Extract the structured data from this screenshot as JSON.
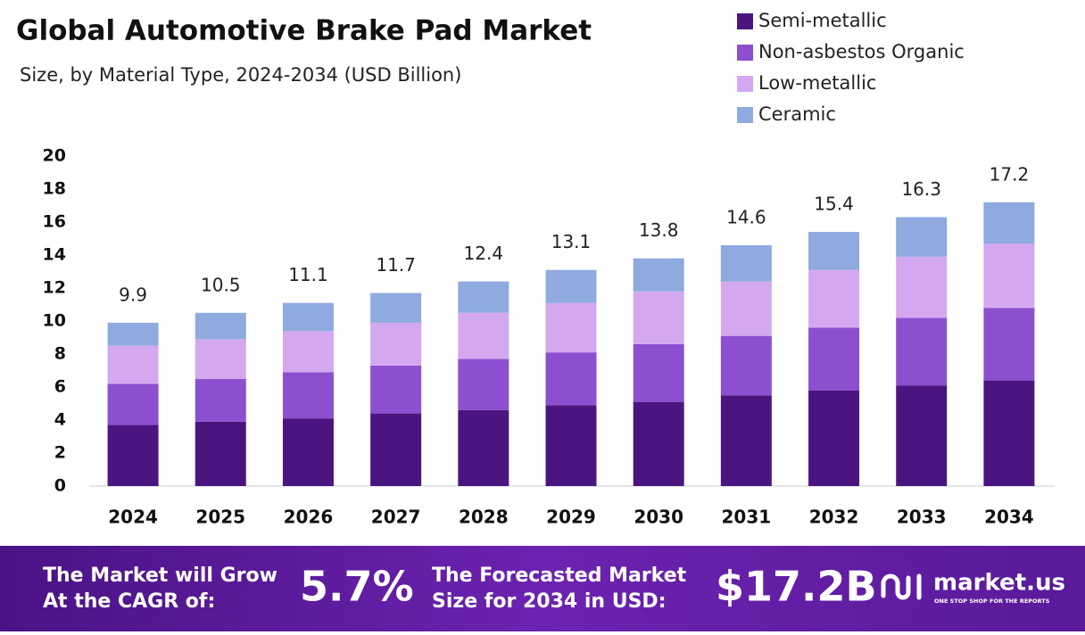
{
  "chart_data": {
    "type": "stacked_bar",
    "title": "Global Automotive Brake Pad Market",
    "subtitle": "Size, by Material Type, 2024-2034 (USD Billion)",
    "categories": [
      "2024",
      "2025",
      "2026",
      "2027",
      "2028",
      "2029",
      "2030",
      "2031",
      "2032",
      "2033",
      "2034"
    ],
    "series": [
      {
        "name": "Semi-metallic",
        "color": "#4b1580",
        "values": [
          3.7,
          3.9,
          4.1,
          4.4,
          4.6,
          4.9,
          5.1,
          5.5,
          5.8,
          6.1,
          6.4
        ]
      },
      {
        "name": "Non-asbestos Organic",
        "color": "#8b4fcf",
        "values": [
          2.5,
          2.6,
          2.8,
          2.9,
          3.1,
          3.2,
          3.5,
          3.6,
          3.8,
          4.1,
          4.4
        ]
      },
      {
        "name": "Low-metallic",
        "color": "#d4a8ef",
        "values": [
          2.3,
          2.4,
          2.5,
          2.6,
          2.8,
          3.0,
          3.2,
          3.3,
          3.5,
          3.7,
          3.9
        ]
      },
      {
        "name": "Ceramic",
        "color": "#8eaadf",
        "values": [
          1.4,
          1.6,
          1.7,
          1.8,
          1.9,
          2.0,
          2.0,
          2.2,
          2.3,
          2.4,
          2.5
        ]
      }
    ],
    "totals": [
      9.9,
      10.5,
      11.1,
      11.7,
      12.4,
      13.1,
      13.8,
      14.6,
      15.4,
      16.3,
      17.2
    ],
    "ylim": [
      0,
      20
    ],
    "yticks": [
      0,
      2,
      4,
      6,
      8,
      10,
      12,
      14,
      16,
      18,
      20
    ],
    "grid": false,
    "legend": "top-right"
  },
  "footer": {
    "cagr_label": [
      "The Market will Grow",
      "At the CAGR of:"
    ],
    "cagr_value": "5.7%",
    "forecast_label": [
      "The Forecasted Market",
      "Size for 2034 in USD:"
    ],
    "forecast_value": "$17.2B",
    "brand": "market.us",
    "tagline": "ONE STOP SHOP FOR THE REPORTS"
  }
}
